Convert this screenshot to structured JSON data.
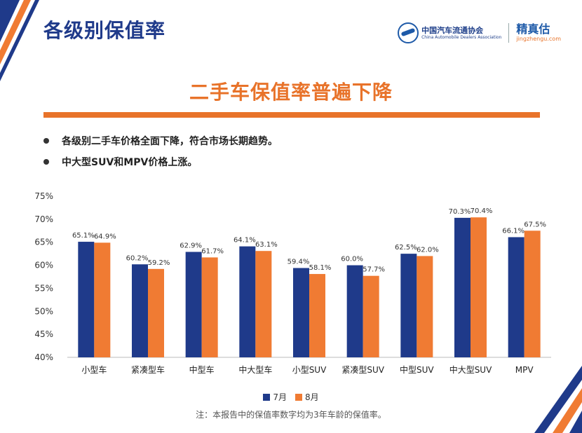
{
  "header": {
    "title": "各级别保值率",
    "logo_org_cn": "中国汽车流通协会",
    "logo_org_en": "China Automobile Dealers Association",
    "logo_brand_cn": "精真估",
    "logo_brand_en": "jingzhengu.com"
  },
  "headline": "二手车保值率普遍下降",
  "bullets": [
    "各级别二手车价格全面下降，符合市场长期趋势。",
    "中大型SUV和MPV价格上涨。"
  ],
  "chart_data": {
    "type": "bar",
    "categories": [
      "小型车",
      "紧凑型车",
      "中型车",
      "中大型车",
      "小型SUV",
      "紧凑型SUV",
      "中型SUV",
      "中大型SUV",
      "MPV"
    ],
    "series": [
      {
        "name": "7月",
        "color": "#1f3a8a",
        "values": [
          65.1,
          60.2,
          62.9,
          64.1,
          59.4,
          60.0,
          62.5,
          70.3,
          66.1
        ],
        "labels": [
          "65.1%",
          "60.2%",
          "62.9%",
          "64.1%",
          "59.4%",
          "60.0%",
          "62.5%",
          "70.3%",
          "66.1%"
        ]
      },
      {
        "name": "8月",
        "color": "#f07b33",
        "values": [
          64.9,
          59.2,
          61.7,
          63.1,
          58.1,
          57.7,
          62.0,
          70.4,
          67.5
        ],
        "labels": [
          "64.9%",
          "59.2%",
          "61.7%",
          "63.1%",
          "58.1%",
          "57.7%",
          "62.0%",
          "70.4%",
          "67.5%"
        ]
      }
    ],
    "yticks": [
      "40%",
      "45%",
      "50%",
      "55%",
      "60%",
      "65%",
      "70%",
      "75%"
    ],
    "ylim": [
      40,
      75
    ],
    "legend_position": "bottom-center",
    "grid": false
  },
  "note": "注：本报告中的保值率数字均为3年车龄的保值率。",
  "colors": {
    "title_blue": "#1f3a8a",
    "accent_orange": "#e8732a"
  }
}
